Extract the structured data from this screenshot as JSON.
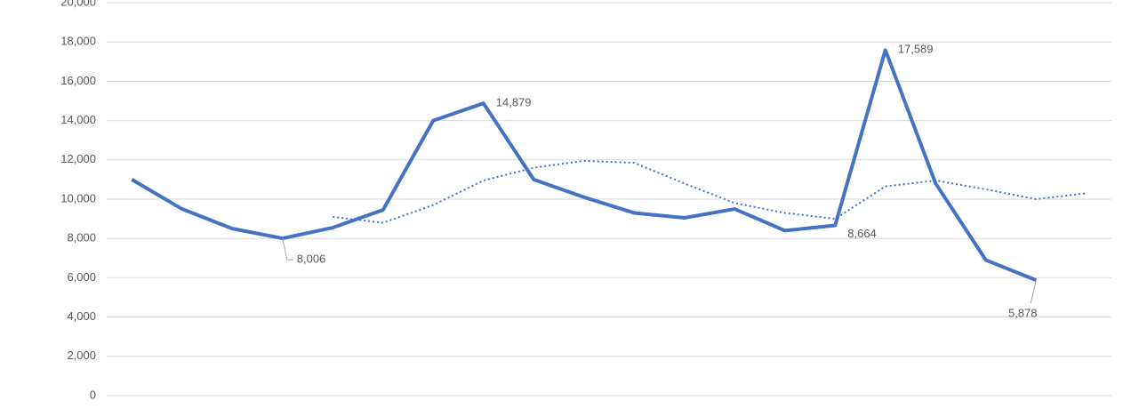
{
  "chart_data": {
    "type": "line",
    "categories": [
      null,
      null,
      null,
      null,
      null,
      null,
      null,
      null,
      null,
      null,
      null,
      null,
      null,
      null,
      null,
      null,
      null,
      null,
      null,
      null
    ],
    "series": [
      {
        "color": "#4472c4",
        "width": 4,
        "dash": "none",
        "values": [
          11000,
          9500,
          8500,
          8006,
          8550,
          9450,
          14000,
          14879,
          11000,
          10100,
          9300,
          9050,
          9500,
          8400,
          8664,
          17589,
          10800,
          6900,
          5878,
          null
        ],
        "value_labels": [
          null,
          null,
          null,
          "8,006",
          null,
          null,
          null,
          "14,879",
          null,
          null,
          null,
          null,
          null,
          null,
          "8,664",
          "17,589",
          null,
          null,
          "5,878",
          null
        ]
      },
      {
        "color": "#4472c4",
        "width": 2,
        "dash": "dot",
        "values": [
          null,
          null,
          null,
          null,
          9100,
          8800,
          9700,
          10950,
          11600,
          11950,
          11850,
          10800,
          9800,
          9300,
          9000,
          10650,
          10950,
          10500,
          10000,
          10300
        ]
      }
    ],
    "ylim": [
      0,
      20000
    ],
    "yticks": [
      0,
      {
        "value": 2000,
        "label": "2,000"
      },
      {
        "value": 4000,
        "label": "4,000"
      },
      {
        "value": 6000,
        "label": "6,000"
      },
      {
        "value": 8000,
        "label": "8,000"
      },
      {
        "value": 10000,
        "label": "10,000"
      },
      {
        "value": 12000,
        "label": "12,000"
      },
      {
        "value": 14000,
        "label": "14,000"
      },
      {
        "value": 16000,
        "label": "16,000"
      },
      {
        "value": 18000,
        "label": "18,000"
      },
      {
        "value": 20000,
        "label": "20,000"
      }
    ],
    "grid": true
  }
}
